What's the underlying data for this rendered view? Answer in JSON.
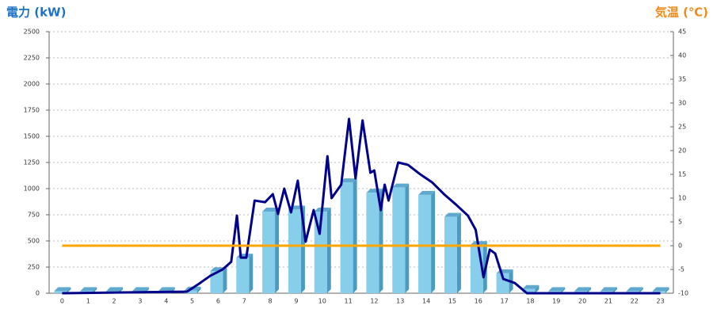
{
  "chart_data": {
    "type": "bar",
    "ylabel": "電力 (kW)",
    "y2label": "気温 (℃)",
    "categories": [
      "0",
      "1",
      "2",
      "3",
      "4",
      "5",
      "6",
      "7",
      "8",
      "9",
      "10",
      "11",
      "12",
      "13",
      "14",
      "15",
      "16",
      "17",
      "18",
      "19",
      "20",
      "21",
      "22",
      "23"
    ],
    "ylim": [
      0,
      2500
    ],
    "yticks": [
      0,
      250,
      500,
      750,
      1000,
      1250,
      1500,
      1750,
      2000,
      2250,
      2500
    ],
    "y2lim": [
      -10,
      45
    ],
    "y2ticks": [
      -10,
      -5,
      0,
      5,
      10,
      15,
      20,
      25,
      30,
      35,
      40,
      45
    ],
    "grid": true,
    "series": [
      {
        "type": "bar",
        "color": "#87ceeb",
        "values": [
          20,
          20,
          20,
          20,
          20,
          25,
          210,
          340,
          780,
          800,
          780,
          1060,
          960,
          1010,
          940,
          730,
          460,
          190,
          40,
          20,
          20,
          20,
          20,
          20
        ]
      },
      {
        "type": "line",
        "color": "#00008b",
        "x": [
          0,
          4.8,
          5.26,
          5.7,
          6.17,
          6.5,
          6.72,
          6.87,
          7.08,
          7.4,
          7.8,
          8.1,
          8.3,
          8.54,
          8.8,
          9.06,
          9.36,
          9.67,
          9.9,
          10.2,
          10.36,
          10.73,
          11.03,
          11.28,
          11.55,
          11.85,
          12.0,
          12.25,
          12.4,
          12.55,
          12.92,
          13.3,
          13.77,
          14.22,
          14.68,
          15.14,
          15.6,
          15.9,
          16.2,
          16.44,
          16.65,
          16.96,
          17.4,
          17.87,
          23
        ],
        "values": [
          0,
          15,
          90,
          167,
          227,
          300,
          742,
          340,
          340,
          886,
          870,
          947,
          758,
          1000,
          773,
          1076,
          492,
          795,
          568,
          1310,
          909,
          1038,
          1667,
          1098,
          1652,
          1152,
          1174,
          795,
          1038,
          886,
          1250,
          1227,
          1136,
          1061,
          947,
          848,
          742,
          606,
          152,
          417,
          379,
          136,
          98,
          0,
          0
        ]
      },
      {
        "type": "line",
        "axis": "y2",
        "color": "#ffa500",
        "values": [
          0,
          0,
          0,
          0,
          0,
          0,
          0,
          0,
          0,
          0,
          0,
          0,
          0,
          0,
          0,
          0,
          0,
          0,
          0,
          0,
          0,
          0,
          0,
          0
        ]
      }
    ]
  }
}
